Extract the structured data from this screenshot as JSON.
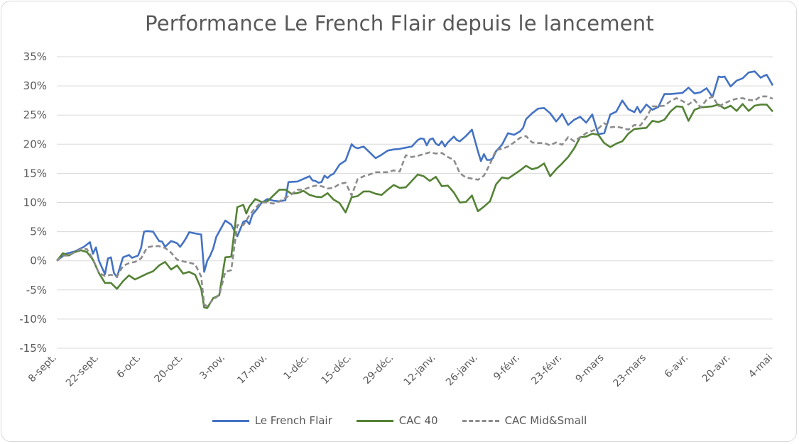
{
  "chart_data": {
    "type": "line",
    "title": "Performance Le French Flair depuis le lancement",
    "xlabel": "",
    "ylabel": "",
    "ylim": [
      -15,
      35
    ],
    "y_ticks": [
      35,
      30,
      25,
      20,
      15,
      10,
      5,
      0,
      -5,
      -10,
      -15
    ],
    "y_tick_labels": [
      "35%",
      "30%",
      "25%",
      "20%",
      "15%",
      "10%",
      "5%",
      "0%",
      "-5%",
      "-10%",
      "-15%"
    ],
    "x_range": [
      0,
      238
    ],
    "x_ticks": [
      0,
      14,
      28,
      42,
      56,
      70,
      84,
      98,
      112,
      126,
      140,
      154,
      168,
      182,
      196,
      210,
      224,
      238
    ],
    "x_tick_labels": [
      "8-sept.",
      "22-sept.",
      "6-oct.",
      "20-oct.",
      "3-nov.",
      "17-nov.",
      "1-déc.",
      "15-déc.",
      "29-déc.",
      "12-janv.",
      "26-janv.",
      "9-févr.",
      "23-févr.",
      "9-mars",
      "23-mars",
      "6-avr.",
      "20-avr.",
      "4-mai"
    ],
    "legend_position": "bottom",
    "series": [
      {
        "name": "Le French Flair",
        "color": "#4472c4",
        "dash": false,
        "x": [
          0,
          3,
          6,
          9,
          11,
          12,
          13,
          14,
          16,
          17,
          18,
          19,
          20,
          22,
          24,
          25,
          27,
          28,
          29,
          30,
          32,
          34,
          35,
          36,
          38,
          39,
          40,
          41,
          42,
          43,
          44,
          45,
          46,
          47,
          48,
          49,
          50,
          51,
          52,
          53,
          56,
          58,
          60,
          62,
          63,
          64,
          65,
          66,
          67,
          68,
          70,
          72,
          74,
          76,
          77,
          80,
          84,
          85,
          86,
          87,
          88,
          89,
          90,
          91,
          92,
          94,
          96,
          98,
          99,
          100,
          102,
          104,
          106,
          108,
          110,
          112,
          114,
          116,
          118,
          120,
          121,
          122,
          123,
          124,
          125,
          126,
          127,
          128,
          129,
          130,
          131,
          132,
          133,
          134,
          136,
          138,
          140,
          141,
          142,
          143,
          144,
          145,
          146,
          148,
          150,
          152,
          154,
          155,
          156,
          158,
          160,
          162,
          164,
          166,
          167,
          168,
          170,
          172,
          174,
          176,
          178,
          180,
          182,
          184,
          186,
          188,
          190,
          192,
          193,
          194,
          196,
          198,
          200,
          202,
          204,
          206,
          208,
          210,
          212,
          214,
          216,
          218,
          220,
          221,
          222,
          224,
          226,
          228,
          230,
          232,
          234,
          235,
          236,
          238
        ],
        "y": [
          0,
          1.2,
          1.6,
          2.4,
          3.2,
          1.2,
          2.3,
          0,
          -2.3,
          0.4,
          0.6,
          -2.1,
          -2.8,
          0.6,
          1,
          0.5,
          0.9,
          2.2,
          5,
          5.1,
          5,
          3.4,
          3.3,
          2.4,
          3.4,
          3.2,
          3,
          2.4,
          3.1,
          3.9,
          4.9,
          4.8,
          4.7,
          4.6,
          4.5,
          -1.9,
          0,
          0.9,
          2.1,
          4.1,
          6.9,
          6.2,
          4.2,
          6.7,
          6.9,
          6.3,
          7.9,
          8.5,
          9.2,
          9.9,
          10.6,
          10.3,
          10.2,
          10.4,
          13.5,
          13.6,
          14.5,
          13.8,
          13.7,
          13.4,
          13.5,
          14.6,
          14.2,
          14.7,
          14.9,
          16.5,
          17.2,
          20,
          19.5,
          19.3,
          19.6,
          18.6,
          17.6,
          18.2,
          18.9,
          19.1,
          19.2,
          19.4,
          19.6,
          20.7,
          21,
          20.9,
          19.8,
          20.8,
          21,
          20.1,
          19.8,
          20.5,
          19.6,
          20.3,
          20.8,
          21.3,
          20.7,
          20.5,
          21.4,
          22.5,
          18.8,
          17.1,
          18.3,
          17.3,
          17.3,
          17.6,
          18.8,
          19.9,
          21.9,
          21.6,
          22.2,
          22.8,
          24.3,
          25.3,
          26.1,
          26.2,
          25.3,
          23.9,
          24.5,
          25.2,
          23.3,
          24.2,
          24.7,
          23.7,
          25.1,
          21.7,
          21.9,
          25.1,
          25.6,
          27.5,
          26,
          25.5,
          26.4,
          25.4,
          26.8,
          25.9,
          26.4,
          28.6,
          28.6,
          28.7,
          28.8,
          29.7,
          28.7,
          28.9,
          29.6,
          28.1,
          31.6,
          31.5,
          31.6,
          29.9,
          30.9,
          31.3,
          32.3,
          32.5,
          31.4,
          31.7,
          31.9,
          30.1
        ]
      },
      {
        "name": "CAC 40",
        "color": "#548235",
        "dash": false,
        "x": [
          0,
          2,
          4,
          6,
          8,
          10,
          12,
          14,
          16,
          18,
          20,
          22,
          24,
          26,
          28,
          30,
          32,
          34,
          36,
          38,
          40,
          42,
          44,
          46,
          48,
          49,
          50,
          52,
          54,
          56,
          58,
          60,
          62,
          63,
          64,
          66,
          68,
          70,
          72,
          74,
          76,
          78,
          80,
          82,
          84,
          86,
          88,
          90,
          92,
          94,
          96,
          98,
          100,
          102,
          104,
          106,
          108,
          110,
          112,
          114,
          116,
          118,
          120,
          122,
          124,
          126,
          128,
          130,
          132,
          134,
          136,
          138,
          140,
          142,
          144,
          146,
          148,
          150,
          152,
          154,
          156,
          158,
          160,
          162,
          164,
          166,
          168,
          170,
          172,
          174,
          176,
          178,
          180,
          182,
          184,
          186,
          188,
          190,
          192,
          194,
          196,
          198,
          200,
          202,
          204,
          206,
          208,
          210,
          212,
          214,
          216,
          218,
          220,
          222,
          224,
          226,
          228,
          230,
          232,
          234,
          236,
          238
        ],
        "y": [
          0,
          1.3,
          0.9,
          1.5,
          1.8,
          1.5,
          0.2,
          -2.1,
          -3.8,
          -3.8,
          -4.8,
          -3.5,
          -2.5,
          -3.2,
          -2.7,
          -2.2,
          -1.8,
          -0.8,
          -0.2,
          -1.5,
          -0.8,
          -2.2,
          -1.9,
          -2.4,
          -4.8,
          -8,
          -8.1,
          -6.4,
          -5.9,
          0.6,
          0.7,
          9.2,
          9.6,
          8.1,
          9.3,
          10.6,
          10.1,
          10.2,
          11.2,
          12.2,
          12.2,
          11.5,
          11.6,
          12,
          11.3,
          11,
          10.9,
          11.6,
          10.5,
          9.9,
          8.3,
          10.9,
          11.1,
          11.9,
          11.9,
          11.5,
          11.3,
          12.2,
          13,
          12.5,
          12.6,
          13.7,
          14.8,
          14.5,
          13.7,
          14.4,
          12.8,
          12.9,
          11.7,
          10,
          10.1,
          11.2,
          8.5,
          9.3,
          10.2,
          13.1,
          14.3,
          14.1,
          14.8,
          15.5,
          16.3,
          15.7,
          16,
          16.7,
          14.5,
          15.7,
          16.7,
          17.8,
          19.3,
          21.2,
          21.3,
          21.8,
          21.6,
          20.2,
          19.5,
          20.1,
          20.5,
          21.8,
          22.6,
          22.7,
          22.8,
          24,
          23.8,
          24.2,
          25.6,
          26.5,
          26.4,
          24,
          25.9,
          26.3,
          26.4,
          26.5,
          26.8,
          26.1,
          26.6,
          25.7,
          26.9,
          25.7,
          26.6,
          26.8,
          26.8,
          25.6
        ]
      },
      {
        "name": "CAC Mid&Small",
        "color": "#8c8c8c",
        "dash": true,
        "x": [
          0,
          2,
          4,
          6,
          8,
          10,
          12,
          14,
          16,
          18,
          20,
          22,
          24,
          26,
          28,
          30,
          32,
          34,
          36,
          38,
          40,
          42,
          44,
          46,
          48,
          49,
          50,
          52,
          54,
          56,
          58,
          60,
          62,
          64,
          66,
          68,
          70,
          72,
          74,
          76,
          78,
          80,
          82,
          84,
          86,
          88,
          90,
          92,
          94,
          96,
          98,
          100,
          102,
          104,
          106,
          108,
          110,
          112,
          114,
          116,
          118,
          120,
          122,
          124,
          126,
          128,
          130,
          132,
          134,
          136,
          138,
          140,
          142,
          144,
          146,
          148,
          150,
          152,
          154,
          156,
          158,
          160,
          162,
          164,
          166,
          168,
          170,
          172,
          174,
          176,
          178,
          180,
          182,
          184,
          186,
          188,
          190,
          192,
          194,
          196,
          198,
          200,
          202,
          204,
          206,
          208,
          210,
          212,
          214,
          216,
          218,
          220,
          222,
          224,
          226,
          228,
          230,
          232,
          234,
          236,
          238
        ],
        "y": [
          0,
          0.9,
          0.9,
          1.5,
          2,
          2,
          0.3,
          -2.1,
          -2.6,
          -2.4,
          -2.7,
          -0.9,
          -0.4,
          -0.2,
          0.4,
          2.3,
          2.5,
          2.5,
          2.2,
          1.4,
          0.2,
          -0.1,
          -0.3,
          -0.6,
          -2.7,
          -7.5,
          -7.8,
          -6.6,
          -5.9,
          -1.9,
          -1.6,
          6.1,
          6.1,
          7.8,
          9.1,
          10,
          10,
          9.8,
          10.2,
          10.8,
          11.4,
          12.2,
          12.2,
          12.6,
          12.9,
          12.8,
          12.4,
          12.5,
          13.2,
          13.4,
          11.2,
          14,
          14.5,
          14.8,
          15.2,
          15.2,
          15.2,
          15.5,
          15.3,
          18.1,
          17.8,
          18,
          18.3,
          18.6,
          18.4,
          18.5,
          17.8,
          17.3,
          15,
          14.3,
          14.1,
          13.9,
          14.6,
          16.6,
          19,
          19.2,
          19.6,
          20.3,
          21.1,
          21.4,
          20.3,
          20.2,
          20.2,
          19.8,
          20.3,
          19.9,
          21.2,
          20.5,
          21.2,
          21.9,
          22.3,
          22.7,
          23.6,
          22.9,
          23,
          22.8,
          22.5,
          23.3,
          23.2,
          24.6,
          26.5,
          26.5,
          26.6,
          27.4,
          27.9,
          27.4,
          26.8,
          27.6,
          26.3,
          27.6,
          28.2,
          26.5,
          27,
          27.5,
          27.8,
          27.9,
          27.6,
          27.5,
          28.2,
          28.2,
          27.8
        ]
      }
    ]
  }
}
